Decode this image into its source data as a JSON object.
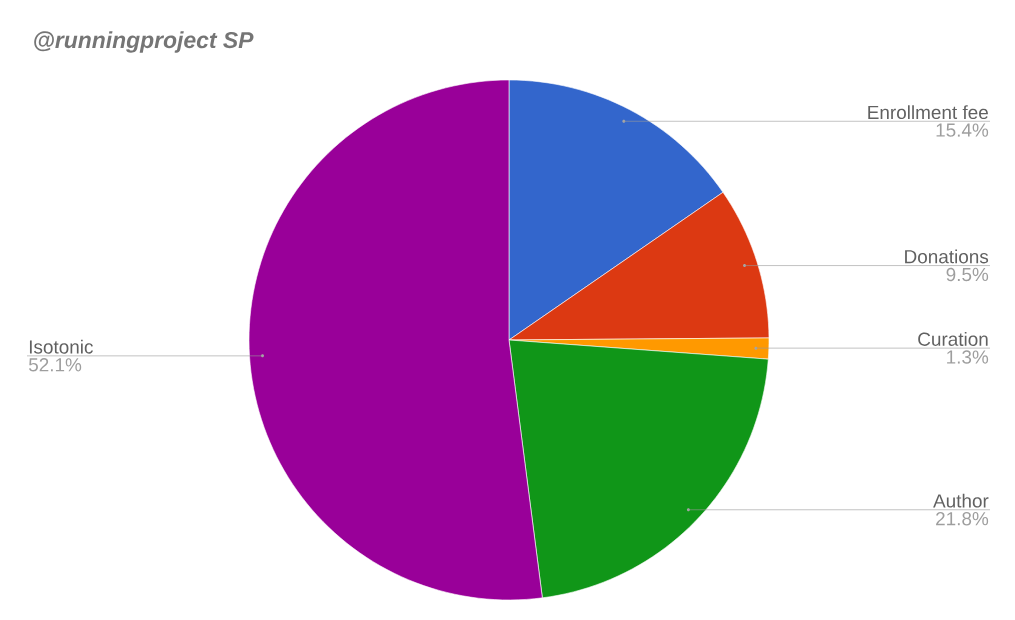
{
  "chart_data": {
    "type": "pie",
    "title": "@runningproject SP",
    "categories": [
      "Enrollment fee",
      "Donations",
      "Curation",
      "Author",
      "Isotonic"
    ],
    "values": [
      15.4,
      9.5,
      1.3,
      21.8,
      52.1
    ],
    "value_labels": [
      "15.4%",
      "9.5%",
      "1.3%",
      "21.8%",
      "52.1%"
    ],
    "colors": [
      "#3366cc",
      "#dc3912",
      "#ff9900",
      "#109618",
      "#990099"
    ]
  }
}
